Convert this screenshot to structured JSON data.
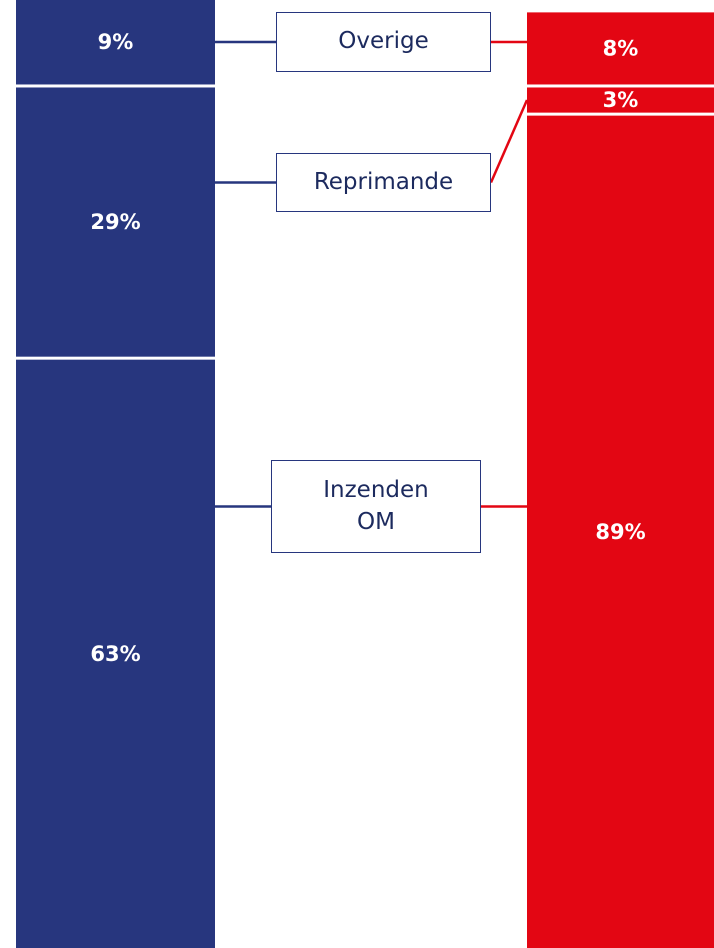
{
  "chart_data": {
    "type": "stacked_bar",
    "categories": [
      null,
      null
    ],
    "colors": [
      "#27367e",
      "#e30613"
    ],
    "series": [
      {
        "name": "Overige",
        "values": [
          9,
          8
        ],
        "value_labels": [
          "9%",
          "8%"
        ]
      },
      {
        "name": "Reprimande",
        "values": [
          29,
          3
        ],
        "value_labels": [
          "29%",
          "3%"
        ]
      },
      {
        "name": "Inzenden OM",
        "values": [
          63,
          89
        ],
        "value_labels": [
          "63%",
          "89%"
        ]
      }
    ]
  }
}
